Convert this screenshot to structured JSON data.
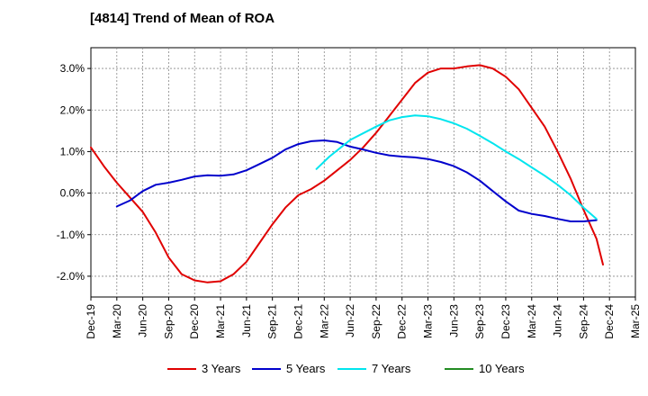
{
  "chart_data": {
    "type": "line",
    "title": "[4814]  Trend of Mean of ROA",
    "xlabel": "",
    "ylabel": "",
    "x_labels": [
      "Dec-19",
      "Mar-20",
      "Jun-20",
      "Sep-20",
      "Dec-20",
      "Mar-21",
      "Jun-21",
      "Sep-21",
      "Dec-21",
      "Mar-22",
      "Jun-22",
      "Sep-22",
      "Dec-22",
      "Mar-23",
      "Jun-23",
      "Sep-23",
      "Dec-23",
      "Mar-24",
      "Jun-24",
      "Sep-24",
      "Dec-24",
      "Mar-25"
    ],
    "y_ticks": [
      3.0,
      2.0,
      1.0,
      0.0,
      -1.0,
      -2.0
    ],
    "y_tick_labels": [
      "3.0%",
      "2.0%",
      "1.0%",
      "0.0%",
      "-1.0%",
      "-2.0%"
    ],
    "ylim": [
      -2.5,
      3.5
    ],
    "grid": true,
    "legend_position": "bottom",
    "series": [
      {
        "name": "3 Years",
        "color": "#e00000",
        "points": [
          [
            0,
            1.1
          ],
          [
            0.5,
            0.65
          ],
          [
            1,
            0.25
          ],
          [
            1.5,
            -0.1
          ],
          [
            2,
            -0.45
          ],
          [
            2.5,
            -0.95
          ],
          [
            3,
            -1.55
          ],
          [
            3.5,
            -1.95
          ],
          [
            4,
            -2.1
          ],
          [
            4.5,
            -2.15
          ],
          [
            5,
            -2.12
          ],
          [
            5.5,
            -1.95
          ],
          [
            6,
            -1.65
          ],
          [
            6.5,
            -1.2
          ],
          [
            7,
            -0.75
          ],
          [
            7.5,
            -0.35
          ],
          [
            8,
            -0.05
          ],
          [
            8.5,
            0.1
          ],
          [
            9,
            0.3
          ],
          [
            9.5,
            0.55
          ],
          [
            10,
            0.8
          ],
          [
            10.5,
            1.1
          ],
          [
            11,
            1.45
          ],
          [
            11.5,
            1.85
          ],
          [
            12,
            2.25
          ],
          [
            12.5,
            2.65
          ],
          [
            13,
            2.9
          ],
          [
            13.5,
            3.0
          ],
          [
            14,
            3.0
          ],
          [
            14.5,
            3.05
          ],
          [
            15,
            3.08
          ],
          [
            15.5,
            3.0
          ],
          [
            16,
            2.8
          ],
          [
            16.5,
            2.5
          ],
          [
            17,
            2.05
          ],
          [
            17.5,
            1.6
          ],
          [
            18,
            1.0
          ],
          [
            18.5,
            0.35
          ],
          [
            19,
            -0.4
          ],
          [
            19.5,
            -1.1
          ],
          [
            19.75,
            -1.72
          ]
        ]
      },
      {
        "name": "5 Years",
        "color": "#0000cc",
        "points": [
          [
            1,
            -0.32
          ],
          [
            1.5,
            -0.18
          ],
          [
            2,
            0.05
          ],
          [
            2.5,
            0.2
          ],
          [
            3,
            0.25
          ],
          [
            3.5,
            0.32
          ],
          [
            4,
            0.4
          ],
          [
            4.5,
            0.43
          ],
          [
            5,
            0.42
          ],
          [
            5.5,
            0.45
          ],
          [
            6,
            0.55
          ],
          [
            6.5,
            0.7
          ],
          [
            7,
            0.85
          ],
          [
            7.5,
            1.05
          ],
          [
            8,
            1.18
          ],
          [
            8.5,
            1.25
          ],
          [
            9,
            1.27
          ],
          [
            9.5,
            1.23
          ],
          [
            10,
            1.12
          ],
          [
            10.5,
            1.05
          ],
          [
            11,
            0.97
          ],
          [
            11.5,
            0.91
          ],
          [
            12,
            0.88
          ],
          [
            12.5,
            0.86
          ],
          [
            13,
            0.82
          ],
          [
            13.5,
            0.75
          ],
          [
            14,
            0.65
          ],
          [
            14.5,
            0.5
          ],
          [
            15,
            0.3
          ],
          [
            15.5,
            0.05
          ],
          [
            16,
            -0.2
          ],
          [
            16.5,
            -0.42
          ],
          [
            17,
            -0.5
          ],
          [
            17.5,
            -0.55
          ],
          [
            18,
            -0.62
          ],
          [
            18.5,
            -0.68
          ],
          [
            19,
            -0.68
          ],
          [
            19.5,
            -0.65
          ]
        ]
      },
      {
        "name": "7 Years",
        "color": "#00e5ee",
        "points": [
          [
            8.7,
            0.58
          ],
          [
            9.2,
            0.88
          ],
          [
            10,
            1.28
          ],
          [
            11,
            1.6
          ],
          [
            11.5,
            1.75
          ],
          [
            12,
            1.83
          ],
          [
            12.5,
            1.87
          ],
          [
            13,
            1.85
          ],
          [
            13.5,
            1.78
          ],
          [
            14,
            1.68
          ],
          [
            14.5,
            1.55
          ],
          [
            15,
            1.38
          ],
          [
            15.5,
            1.2
          ],
          [
            16,
            1.0
          ],
          [
            16.5,
            0.82
          ],
          [
            17,
            0.62
          ],
          [
            17.5,
            0.42
          ],
          [
            18,
            0.2
          ],
          [
            18.5,
            -0.05
          ],
          [
            19,
            -0.35
          ],
          [
            19.5,
            -0.62
          ]
        ]
      },
      {
        "name": "10 Years",
        "color": "#228b22",
        "points": []
      }
    ]
  }
}
